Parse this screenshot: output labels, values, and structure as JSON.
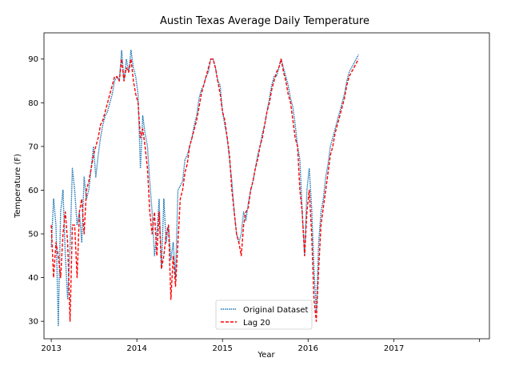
{
  "chart_data": {
    "type": "line",
    "title": "Austin Texas Average Daily Temperature",
    "xlabel": "Year",
    "ylabel": "Temperature (F)",
    "xlim": [
      "2012-12-01",
      "2018-02-12"
    ],
    "ylim": [
      26,
      96
    ],
    "x_ticks": [
      "2013",
      "2014",
      "2015",
      "2016",
      "2017",
      ""
    ],
    "y_ticks": [
      "30",
      "40",
      "50",
      "60",
      "70",
      "80",
      "90"
    ],
    "legend_position": "bottom-center",
    "grid": false,
    "x_start": "2013-01-01",
    "x_step": "10 days",
    "series": [
      {
        "name": "Original Dataset",
        "color": "#1f77b4",
        "style": "dotted",
        "values": [
          47,
          58,
          52,
          29,
          55,
          60,
          45,
          35,
          47,
          65,
          60,
          52,
          55,
          48,
          63,
          58,
          60,
          65,
          70,
          63,
          68,
          72,
          75,
          77,
          78,
          80,
          82,
          85,
          86,
          85,
          92,
          85,
          90,
          87,
          92,
          88,
          86,
          82,
          65,
          77,
          73,
          70,
          62,
          55,
          45,
          50,
          58,
          42,
          58,
          48,
          52,
          44,
          48,
          40,
          60,
          61,
          62,
          67,
          68,
          70,
          72,
          75,
          77,
          81,
          83,
          84,
          86,
          87,
          90,
          90,
          88,
          85,
          84,
          78,
          75,
          72,
          67,
          62,
          55,
          50,
          48,
          50,
          55,
          53,
          57,
          60,
          62,
          65,
          68,
          70,
          73,
          75,
          78,
          81,
          84,
          86,
          86,
          88,
          90,
          88,
          86,
          84,
          81,
          79,
          75,
          70,
          67,
          55,
          45,
          60,
          65,
          56,
          42,
          32,
          48,
          55,
          58,
          63,
          66,
          70,
          72,
          74,
          76,
          78,
          80,
          82,
          85,
          87,
          88,
          89,
          90,
          91
        ]
      },
      {
        "name": "Lag 20",
        "color": "#ff0000",
        "style": "dashed",
        "values": [
          52,
          40,
          48,
          45,
          40,
          50,
          55,
          48,
          30,
          52,
          52,
          40,
          55,
          58,
          50,
          60,
          62,
          65,
          68,
          70,
          72,
          75,
          76,
          78,
          80,
          82,
          84,
          86,
          86,
          85,
          90,
          85,
          88,
          87,
          90,
          85,
          82,
          80,
          72,
          74,
          70,
          65,
          55,
          50,
          55,
          45,
          55,
          42,
          45,
          50,
          52,
          35,
          45,
          38,
          48,
          58,
          60,
          64,
          66,
          70,
          72,
          74,
          76,
          79,
          82,
          84,
          86,
          88,
          90,
          90,
          88,
          85,
          82,
          78,
          76,
          72,
          68,
          60,
          55,
          50,
          48,
          45,
          52,
          55,
          56,
          60,
          62,
          65,
          67,
          70,
          72,
          75,
          78,
          80,
          83,
          85,
          87,
          88,
          90,
          87,
          85,
          82,
          80,
          76,
          72,
          70,
          60,
          55,
          45,
          55,
          60,
          50,
          35,
          30,
          42,
          52,
          56,
          60,
          64,
          68,
          70,
          73,
          75,
          77,
          79,
          81,
          84,
          86,
          87,
          88,
          89,
          90
        ]
      }
    ]
  }
}
